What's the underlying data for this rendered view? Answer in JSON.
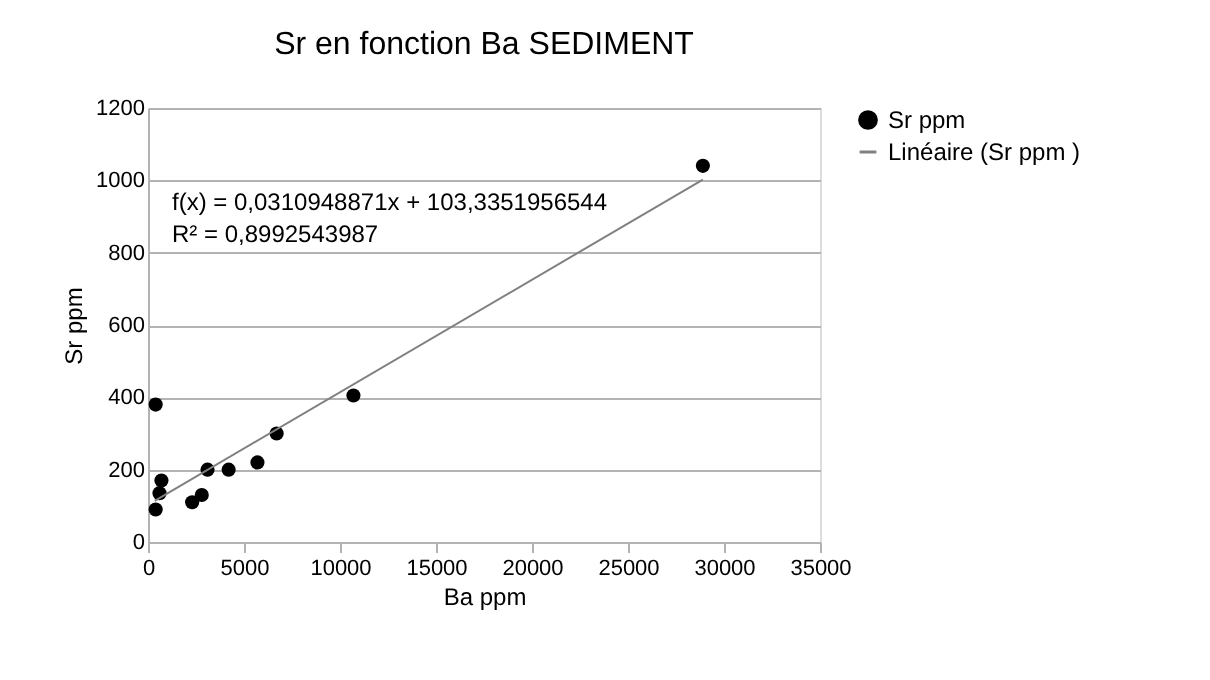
{
  "chart_data": {
    "type": "scatter",
    "title": "Sr en fonction Ba SEDIMENT",
    "xlabel": "Ba ppm",
    "ylabel": "Sr ppm",
    "xlim": [
      0,
      35000
    ],
    "xticks": [
      0,
      5000,
      10000,
      15000,
      20000,
      25000,
      30000,
      35000
    ],
    "ylim": [
      0,
      1200
    ],
    "yticks": [
      0,
      200,
      400,
      600,
      800,
      1000,
      1200
    ],
    "grid": "y",
    "legend": "right",
    "annotations": [
      "f(x) = 0,0310948871x + 103,3351956544",
      "R² = 0,8992543987"
    ],
    "series": [
      {
        "name": "Sr ppm",
        "color": "#000000",
        "marker": "circle",
        "x": [
          400,
          28900,
          10700,
          6700,
          5700,
          4200,
          3100,
          2800,
          2300,
          400,
          600,
          700
        ],
        "values": [
          380,
          1040,
          405,
          300,
          220,
          200,
          200,
          130,
          110,
          90,
          135,
          170
        ]
      },
      {
        "name": "Linéaire (Sr ppm )",
        "color": "#808080",
        "type": "line",
        "line_style": "solid",
        "x": [
          350,
          28900
        ],
        "values": [
          114,
          1002
        ]
      }
    ]
  }
}
